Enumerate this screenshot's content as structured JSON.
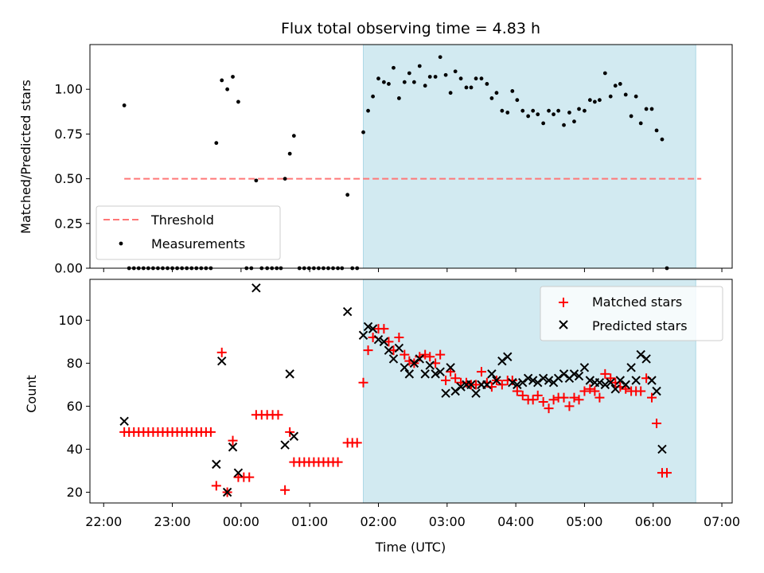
{
  "chart_data": {
    "type": "scatter",
    "title": "Flux total observing time = 4.83 h",
    "xlabel": "Time (UTC)",
    "x_unit": "hours after 22:00",
    "xlim": [
      -0.2,
      9.15
    ],
    "xticks": [
      0,
      1,
      2,
      3,
      4,
      5,
      6,
      7,
      8,
      9
    ],
    "xtick_labels": [
      "22:00",
      "23:00",
      "00:00",
      "01:00",
      "02:00",
      "03:00",
      "04:00",
      "05:00",
      "06:00",
      "07:00"
    ],
    "shaded_interval": {
      "start": 3.78,
      "end": 8.62,
      "color": "#add8e6"
    },
    "top_panel": {
      "ylabel": "Matched/Predicted stars",
      "ylim": [
        0,
        1.25
      ],
      "yticks": [
        0,
        0.25,
        0.5,
        0.75,
        1.0
      ],
      "ytick_labels": [
        "0.00",
        "0.25",
        "0.50",
        "0.75",
        "1.00"
      ],
      "threshold": {
        "label": "Threshold",
        "value": 0.5,
        "x_start": 0.3,
        "x_end": 8.7,
        "color": "#ff7777"
      },
      "measurements_label": "Measurements",
      "measurements": [
        [
          0.3,
          0.91
        ],
        [
          0.37,
          0
        ],
        [
          0.44,
          0
        ],
        [
          0.51,
          0
        ],
        [
          0.58,
          0
        ],
        [
          0.65,
          0
        ],
        [
          0.72,
          0
        ],
        [
          0.79,
          0
        ],
        [
          0.86,
          0
        ],
        [
          0.93,
          0
        ],
        [
          1.0,
          0
        ],
        [
          1.07,
          0
        ],
        [
          1.14,
          0
        ],
        [
          1.21,
          0
        ],
        [
          1.28,
          0
        ],
        [
          1.35,
          0
        ],
        [
          1.42,
          0
        ],
        [
          1.49,
          0
        ],
        [
          1.56,
          0
        ],
        [
          1.64,
          0.7
        ],
        [
          1.72,
          1.05
        ],
        [
          1.8,
          1.0
        ],
        [
          1.88,
          1.07
        ],
        [
          1.96,
          0.93
        ],
        [
          2.08,
          0
        ],
        [
          2.15,
          0
        ],
        [
          2.22,
          0.49
        ],
        [
          2.3,
          0
        ],
        [
          2.38,
          0
        ],
        [
          2.45,
          0
        ],
        [
          2.52,
          0
        ],
        [
          2.58,
          0
        ],
        [
          2.64,
          0.5
        ],
        [
          2.71,
          0.64
        ],
        [
          2.77,
          0.74
        ],
        [
          2.85,
          0
        ],
        [
          2.92,
          0
        ],
        [
          2.99,
          0
        ],
        [
          3.06,
          0
        ],
        [
          3.13,
          0
        ],
        [
          3.2,
          0
        ],
        [
          3.27,
          0
        ],
        [
          3.34,
          0
        ],
        [
          3.41,
          0
        ],
        [
          3.47,
          0
        ],
        [
          3.55,
          0.41
        ],
        [
          3.62,
          0
        ],
        [
          3.69,
          0
        ],
        [
          3.78,
          0.76
        ],
        [
          3.85,
          0.88
        ],
        [
          3.92,
          0.96
        ],
        [
          4.0,
          1.06
        ],
        [
          4.08,
          1.04
        ],
        [
          4.15,
          1.03
        ],
        [
          4.22,
          1.12
        ],
        [
          4.3,
          0.95
        ],
        [
          4.38,
          1.04
        ],
        [
          4.45,
          1.09
        ],
        [
          4.52,
          1.04
        ],
        [
          4.6,
          1.13
        ],
        [
          4.68,
          1.02
        ],
        [
          4.75,
          1.07
        ],
        [
          4.83,
          1.07
        ],
        [
          4.9,
          1.18
        ],
        [
          4.98,
          1.08
        ],
        [
          5.05,
          0.98
        ],
        [
          5.12,
          1.1
        ],
        [
          5.2,
          1.06
        ],
        [
          5.28,
          1.01
        ],
        [
          5.35,
          1.01
        ],
        [
          5.42,
          1.06
        ],
        [
          5.5,
          1.06
        ],
        [
          5.58,
          1.03
        ],
        [
          5.65,
          0.95
        ],
        [
          5.72,
          0.98
        ],
        [
          5.8,
          0.88
        ],
        [
          5.88,
          0.87
        ],
        [
          5.95,
          0.99
        ],
        [
          6.02,
          0.94
        ],
        [
          6.1,
          0.88
        ],
        [
          6.18,
          0.85
        ],
        [
          6.25,
          0.88
        ],
        [
          6.32,
          0.86
        ],
        [
          6.4,
          0.81
        ],
        [
          6.48,
          0.88
        ],
        [
          6.55,
          0.86
        ],
        [
          6.62,
          0.88
        ],
        [
          6.7,
          0.8
        ],
        [
          6.78,
          0.87
        ],
        [
          6.85,
          0.82
        ],
        [
          6.92,
          0.89
        ],
        [
          7.0,
          0.88
        ],
        [
          7.08,
          0.94
        ],
        [
          7.15,
          0.93
        ],
        [
          7.22,
          0.94
        ],
        [
          7.3,
          1.09
        ],
        [
          7.38,
          0.96
        ],
        [
          7.45,
          1.02
        ],
        [
          7.52,
          1.03
        ],
        [
          7.6,
          0.97
        ],
        [
          7.68,
          0.85
        ],
        [
          7.75,
          0.96
        ],
        [
          7.82,
          0.81
        ],
        [
          7.9,
          0.89
        ],
        [
          7.98,
          0.89
        ],
        [
          8.05,
          0.77
        ],
        [
          8.13,
          0.72
        ],
        [
          8.2,
          0
        ]
      ]
    },
    "bottom_panel": {
      "ylabel": "Count",
      "ylim": [
        15,
        119
      ],
      "yticks": [
        20,
        40,
        60,
        80,
        100
      ],
      "ytick_labels": [
        "20",
        "40",
        "60",
        "80",
        "100"
      ],
      "series": [
        {
          "name": "Matched stars",
          "marker": "+",
          "color": "#ff0000",
          "points": [
            [
              0.3,
              48
            ],
            [
              0.37,
              48
            ],
            [
              0.44,
              48
            ],
            [
              0.51,
              48
            ],
            [
              0.58,
              48
            ],
            [
              0.65,
              48
            ],
            [
              0.72,
              48
            ],
            [
              0.79,
              48
            ],
            [
              0.86,
              48
            ],
            [
              0.93,
              48
            ],
            [
              1.0,
              48
            ],
            [
              1.07,
              48
            ],
            [
              1.14,
              48
            ],
            [
              1.21,
              48
            ],
            [
              1.28,
              48
            ],
            [
              1.35,
              48
            ],
            [
              1.42,
              48
            ],
            [
              1.49,
              48
            ],
            [
              1.56,
              48
            ],
            [
              1.64,
              23
            ],
            [
              1.72,
              85
            ],
            [
              1.8,
              20
            ],
            [
              1.88,
              44
            ],
            [
              1.96,
              27
            ],
            [
              2.04,
              27
            ],
            [
              2.12,
              27
            ],
            [
              2.22,
              56
            ],
            [
              2.3,
              56
            ],
            [
              2.38,
              56
            ],
            [
              2.46,
              56
            ],
            [
              2.54,
              56
            ],
            [
              2.64,
              21
            ],
            [
              2.71,
              48
            ],
            [
              2.77,
              34
            ],
            [
              2.85,
              34
            ],
            [
              2.92,
              34
            ],
            [
              2.99,
              34
            ],
            [
              3.06,
              34
            ],
            [
              3.13,
              34
            ],
            [
              3.2,
              34
            ],
            [
              3.27,
              34
            ],
            [
              3.34,
              34
            ],
            [
              3.41,
              34
            ],
            [
              3.55,
              43
            ],
            [
              3.62,
              43
            ],
            [
              3.69,
              43
            ],
            [
              3.78,
              71
            ],
            [
              3.85,
              86
            ],
            [
              3.92,
              92
            ],
            [
              4.0,
              96
            ],
            [
              4.08,
              96
            ],
            [
              4.15,
              90
            ],
            [
              4.22,
              86
            ],
            [
              4.3,
              92
            ],
            [
              4.38,
              84
            ],
            [
              4.45,
              81
            ],
            [
              4.52,
              80
            ],
            [
              4.6,
              83
            ],
            [
              4.68,
              84
            ],
            [
              4.75,
              83
            ],
            [
              4.83,
              80
            ],
            [
              4.9,
              84
            ],
            [
              4.98,
              72
            ],
            [
              5.05,
              76
            ],
            [
              5.12,
              73
            ],
            [
              5.2,
              71
            ],
            [
              5.28,
              71
            ],
            [
              5.35,
              70
            ],
            [
              5.42,
              70
            ],
            [
              5.5,
              76
            ],
            [
              5.58,
              71
            ],
            [
              5.65,
              69
            ],
            [
              5.72,
              72
            ],
            [
              5.8,
              70
            ],
            [
              5.88,
              72
            ],
            [
              5.95,
              72
            ],
            [
              6.02,
              67
            ],
            [
              6.1,
              65
            ],
            [
              6.18,
              63
            ],
            [
              6.25,
              63
            ],
            [
              6.32,
              65
            ],
            [
              6.4,
              62
            ],
            [
              6.48,
              59
            ],
            [
              6.55,
              63
            ],
            [
              6.62,
              64
            ],
            [
              6.7,
              64
            ],
            [
              6.78,
              60
            ],
            [
              6.85,
              64
            ],
            [
              6.92,
              63
            ],
            [
              7.0,
              67
            ],
            [
              7.08,
              68
            ],
            [
              7.15,
              67
            ],
            [
              7.22,
              64
            ],
            [
              7.3,
              75
            ],
            [
              7.38,
              73
            ],
            [
              7.45,
              71
            ],
            [
              7.52,
              69
            ],
            [
              7.6,
              68
            ],
            [
              7.68,
              67
            ],
            [
              7.75,
              67
            ],
            [
              7.82,
              67
            ],
            [
              7.9,
              73
            ],
            [
              7.98,
              64
            ],
            [
              8.05,
              52
            ],
            [
              8.13,
              29
            ],
            [
              8.2,
              29
            ]
          ]
        },
        {
          "name": "Predicted stars",
          "marker": "x",
          "color": "#000000",
          "points": [
            [
              0.3,
              53
            ],
            [
              1.64,
              33
            ],
            [
              1.72,
              81
            ],
            [
              1.8,
              20
            ],
            [
              1.88,
              41
            ],
            [
              1.96,
              29
            ],
            [
              2.22,
              115
            ],
            [
              2.64,
              42
            ],
            [
              2.71,
              75
            ],
            [
              2.77,
              46
            ],
            [
              3.55,
              104
            ],
            [
              3.78,
              93
            ],
            [
              3.85,
              97
            ],
            [
              3.92,
              96
            ],
            [
              4.0,
              91
            ],
            [
              4.08,
              90
            ],
            [
              4.15,
              86
            ],
            [
              4.22,
              82
            ],
            [
              4.3,
              87
            ],
            [
              4.38,
              78
            ],
            [
              4.45,
              75
            ],
            [
              4.52,
              80
            ],
            [
              4.6,
              82
            ],
            [
              4.68,
              75
            ],
            [
              4.75,
              79
            ],
            [
              4.83,
              75
            ],
            [
              4.9,
              76
            ],
            [
              4.98,
              66
            ],
            [
              5.05,
              78
            ],
            [
              5.12,
              67
            ],
            [
              5.2,
              69
            ],
            [
              5.28,
              70
            ],
            [
              5.35,
              70
            ],
            [
              5.42,
              66
            ],
            [
              5.5,
              70
            ],
            [
              5.58,
              70
            ],
            [
              5.65,
              75
            ],
            [
              5.72,
              72
            ],
            [
              5.8,
              81
            ],
            [
              5.88,
              83
            ],
            [
              5.95,
              71
            ],
            [
              6.02,
              70
            ],
            [
              6.1,
              71
            ],
            [
              6.18,
              73
            ],
            [
              6.25,
              72
            ],
            [
              6.32,
              71
            ],
            [
              6.4,
              73
            ],
            [
              6.48,
              72
            ],
            [
              6.55,
              71
            ],
            [
              6.62,
              73
            ],
            [
              6.7,
              75
            ],
            [
              6.78,
              73
            ],
            [
              6.85,
              75
            ],
            [
              6.92,
              74
            ],
            [
              7.0,
              78
            ],
            [
              7.08,
              72
            ],
            [
              7.15,
              71
            ],
            [
              7.22,
              71
            ],
            [
              7.3,
              70
            ],
            [
              7.38,
              71
            ],
            [
              7.45,
              68
            ],
            [
              7.52,
              72
            ],
            [
              7.6,
              70
            ],
            [
              7.68,
              78
            ],
            [
              7.75,
              72
            ],
            [
              7.82,
              84
            ],
            [
              7.9,
              82
            ],
            [
              7.98,
              72
            ],
            [
              8.05,
              67
            ],
            [
              8.13,
              40
            ]
          ]
        }
      ]
    }
  }
}
